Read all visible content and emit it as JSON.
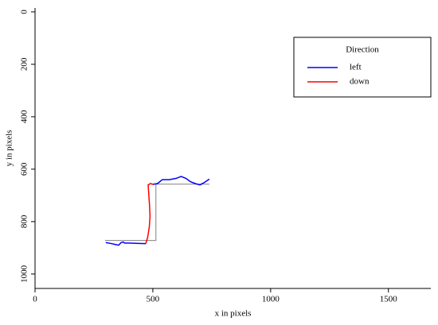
{
  "chart_data": {
    "type": "line",
    "x_label": "x in pixels",
    "y_label": "y in pixels",
    "xlim": [
      0,
      1680
    ],
    "ylim": [
      -15,
      1055
    ],
    "y_inverted": true,
    "xticks": [
      0,
      500,
      1000,
      1500
    ],
    "yticks": [
      0,
      200,
      400,
      600,
      800,
      1000
    ],
    "legend_title": "Direction",
    "legend_position": "topright",
    "reference": {
      "color": "#808080",
      "x": [
        297,
        513,
        513,
        740
      ],
      "values": [
        872,
        872,
        657,
        657
      ]
    },
    "series": [
      {
        "name": "left",
        "color": "#0000ff",
        "x": [
          300,
          320,
          340,
          355,
          365,
          375,
          380,
          400,
          430,
          470,
          null,
          500,
          520,
          540,
          570,
          600,
          620,
          640,
          660,
          680,
          700,
          720,
          740
        ],
        "values": [
          880,
          883,
          887,
          890,
          880,
          878,
          882,
          882,
          883,
          884,
          null,
          658,
          655,
          640,
          640,
          635,
          628,
          635,
          648,
          655,
          660,
          650,
          638
        ]
      },
      {
        "name": "down",
        "color": "#ff0000",
        "x": [
          470,
          478,
          485,
          488,
          486,
          483,
          480,
          490,
          500
        ],
        "values": [
          884,
          860,
          820,
          780,
          740,
          700,
          660,
          655,
          658
        ]
      }
    ]
  }
}
